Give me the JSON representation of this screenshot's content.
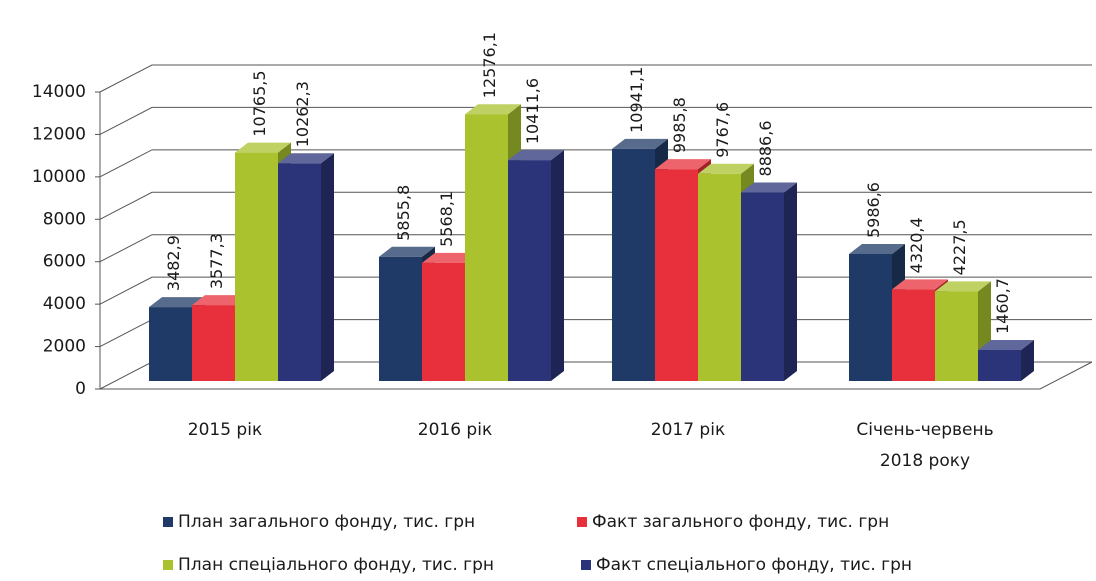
{
  "chart_data": {
    "type": "bar3d",
    "categories": [
      "2015 рік",
      "2016 рік",
      "2017 рік",
      "Січень-червень 2018 року"
    ],
    "series": [
      {
        "name": "План загального фонду, тис. грн",
        "color": "#1f3a66",
        "values": [
          3482.9,
          5855.8,
          10941.1,
          5986.6
        ],
        "value_labels": [
          "3482,9",
          "5855,8",
          "10941,1",
          "5986,6"
        ]
      },
      {
        "name": "Факт загального фонду, тис. грн",
        "color": "#e8303c",
        "values": [
          3577.3,
          5568.1,
          9985.8,
          4320.4
        ],
        "value_labels": [
          "3577,3",
          "5568,1",
          "9985,8",
          "4320,4"
        ]
      },
      {
        "name": "План спеціального фонду, тис. грн",
        "color": "#a9c22e",
        "values": [
          10765.5,
          12576.1,
          9767.6,
          4227.5
        ],
        "value_labels": [
          "10765,5",
          "12576,1",
          "9767,6",
          "4227,5"
        ]
      },
      {
        "name": "Факт спеціального фонду, тис. грн",
        "color": "#2b3478",
        "values": [
          10262.3,
          10411.6,
          8886.6,
          1460.7
        ],
        "value_labels": [
          "10262,3",
          "10411,6",
          "8886,6",
          "1460,7"
        ]
      }
    ],
    "ylim": [
      0,
      14000
    ],
    "yticks": [
      0,
      2000,
      4000,
      6000,
      8000,
      10000,
      12000,
      14000
    ],
    "grid": true
  }
}
